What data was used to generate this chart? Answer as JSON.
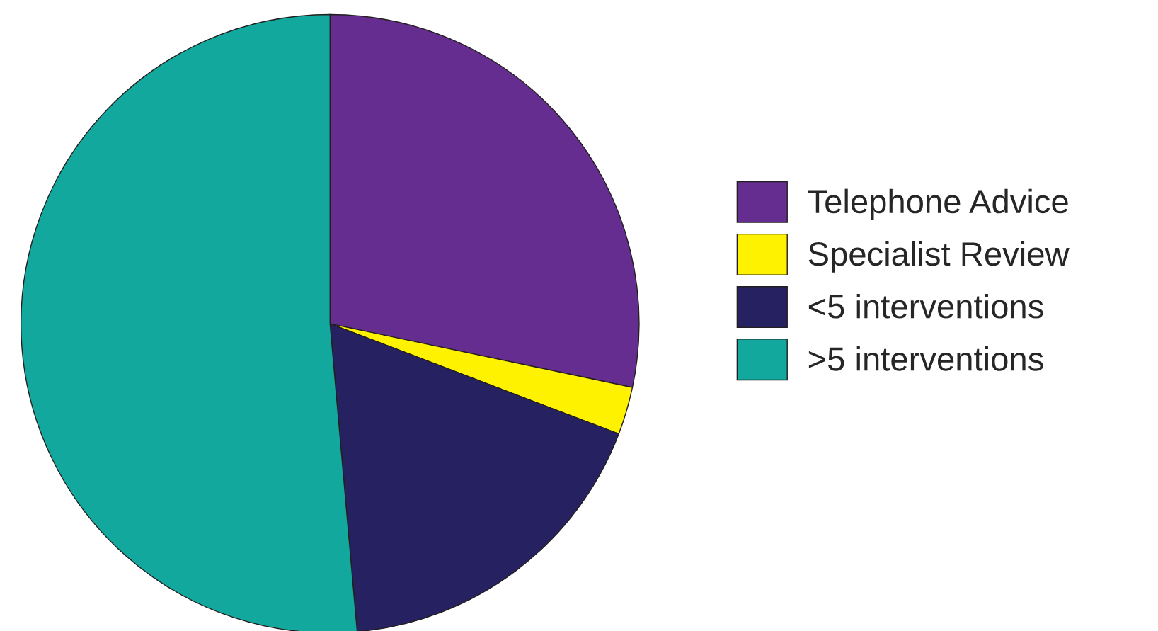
{
  "chart_data": {
    "type": "pie",
    "categories": [
      "Telephone Advice",
      "Specialist Review",
      "<5 interventions",
      ">5 interventions"
    ],
    "values": [
      28.3,
      2.5,
      17.8,
      51.4
    ],
    "colors": [
      "#652d90",
      "#fff200",
      "#262262",
      "#13a89e"
    ],
    "legend": "right"
  }
}
